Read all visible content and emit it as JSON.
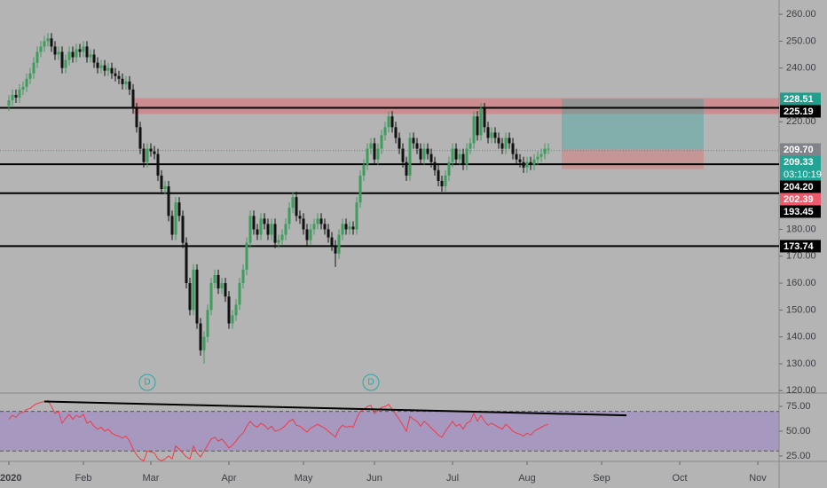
{
  "chart_data": [
    {
      "type": "candlestick",
      "up_color": "#3e9c5c",
      "down_color": "#111111",
      "open": [
        226,
        228,
        230,
        229,
        232,
        233,
        236,
        238,
        242,
        246,
        248,
        250,
        251,
        248,
        245,
        246,
        240,
        243,
        246,
        244,
        247,
        246,
        248,
        244,
        245,
        242,
        240,
        241,
        239,
        240,
        238,
        237,
        236,
        234,
        235,
        232,
        225,
        218,
        210,
        205,
        210,
        209,
        208,
        200,
        195,
        196,
        185,
        178,
        190,
        185,
        175,
        160,
        150,
        165,
        145,
        135,
        140,
        150,
        160,
        163,
        158,
        160,
        155,
        145,
        148,
        152,
        160,
        165,
        175,
        185,
        180,
        178,
        184,
        182,
        178,
        182,
        175,
        176,
        178,
        182,
        188,
        192,
        185,
        184,
        180,
        176,
        180,
        182,
        184,
        182,
        180,
        177,
        174,
        171,
        178,
        182,
        180,
        181,
        180,
        190,
        200,
        204,
        210,
        212,
        206,
        210,
        215,
        218,
        222,
        218,
        214,
        210,
        205,
        200,
        214,
        212,
        210,
        206,
        210,
        208,
        205,
        202,
        198,
        196,
        200,
        205,
        210,
        206,
        208,
        204,
        210,
        212,
        222,
        215,
        225,
        218,
        214,
        216,
        214,
        212,
        210,
        214,
        212,
        208,
        206,
        205,
        203,
        205,
        204,
        206,
        207,
        208,
        210
      ],
      "high": [
        230,
        232,
        232,
        234,
        235,
        238,
        240,
        244,
        248,
        250,
        252,
        253,
        253,
        250,
        248,
        248,
        245,
        248,
        248,
        249,
        249,
        250,
        250,
        247,
        247,
        244,
        243,
        243,
        242,
        242,
        240,
        239,
        238,
        237,
        237,
        234,
        227,
        220,
        212,
        212,
        212,
        211,
        210,
        202,
        198,
        198,
        187,
        192,
        192,
        187,
        177,
        162,
        167,
        167,
        147,
        142,
        152,
        162,
        165,
        165,
        162,
        162,
        157,
        150,
        154,
        162,
        167,
        177,
        187,
        187,
        182,
        186,
        186,
        184,
        184,
        184,
        178,
        180,
        184,
        190,
        194,
        194,
        187,
        186,
        182,
        182,
        184,
        186,
        186,
        184,
        182,
        179,
        176,
        180,
        184,
        184,
        183,
        183,
        192,
        202,
        206,
        212,
        214,
        214,
        212,
        217,
        220,
        224,
        224,
        220,
        216,
        212,
        207,
        216,
        216,
        214,
        212,
        212,
        212,
        210,
        207,
        204,
        200,
        202,
        207,
        212,
        212,
        210,
        210,
        212,
        214,
        224,
        224,
        227,
        227,
        220,
        218,
        218,
        216,
        214,
        216,
        216,
        214,
        210,
        208,
        207,
        207,
        207,
        208,
        209,
        210,
        212,
        212
      ],
      "low": [
        224,
        226,
        227,
        227,
        230,
        231,
        234,
        236,
        240,
        244,
        246,
        248,
        246,
        243,
        243,
        238,
        238,
        241,
        242,
        242,
        244,
        244,
        242,
        242,
        240,
        238,
        238,
        237,
        237,
        236,
        235,
        234,
        232,
        232,
        230,
        223,
        216,
        208,
        203,
        203,
        207,
        206,
        198,
        193,
        193,
        183,
        176,
        176,
        183,
        173,
        158,
        148,
        148,
        143,
        133,
        130,
        138,
        148,
        158,
        156,
        156,
        153,
        143,
        143,
        146,
        150,
        158,
        163,
        173,
        178,
        176,
        176,
        180,
        176,
        176,
        173,
        173,
        174,
        176,
        180,
        186,
        183,
        182,
        178,
        174,
        174,
        178,
        180,
        180,
        178,
        175,
        172,
        166,
        169,
        176,
        178,
        178,
        178,
        178,
        188,
        198,
        202,
        208,
        204,
        204,
        208,
        213,
        216,
        216,
        212,
        208,
        203,
        198,
        198,
        210,
        208,
        204,
        204,
        206,
        203,
        200,
        196,
        194,
        194,
        198,
        203,
        204,
        204,
        202,
        202,
        208,
        210,
        213,
        213,
        216,
        212,
        212,
        212,
        210,
        208,
        208,
        210,
        206,
        204,
        203,
        201,
        201,
        202,
        202,
        204,
        205,
        206,
        208
      ],
      "close": [
        228,
        230,
        229,
        232,
        233,
        236,
        238,
        242,
        246,
        248,
        250,
        251,
        248,
        245,
        246,
        240,
        243,
        246,
        244,
        247,
        246,
        248,
        244,
        245,
        242,
        240,
        241,
        239,
        240,
        238,
        237,
        236,
        234,
        235,
        232,
        225,
        218,
        210,
        205,
        210,
        209,
        208,
        200,
        195,
        196,
        185,
        178,
        190,
        185,
        175,
        160,
        150,
        165,
        145,
        135,
        140,
        150,
        160,
        163,
        158,
        160,
        155,
        145,
        148,
        152,
        160,
        165,
        175,
        185,
        180,
        178,
        184,
        182,
        178,
        182,
        175,
        176,
        178,
        182,
        188,
        192,
        185,
        184,
        180,
        176,
        180,
        182,
        184,
        182,
        180,
        177,
        174,
        171,
        178,
        182,
        180,
        181,
        180,
        190,
        200,
        204,
        210,
        212,
        206,
        210,
        215,
        218,
        222,
        218,
        214,
        210,
        205,
        200,
        214,
        212,
        210,
        206,
        210,
        208,
        205,
        202,
        198,
        196,
        200,
        205,
        210,
        206,
        208,
        204,
        210,
        212,
        222,
        215,
        225,
        218,
        214,
        216,
        214,
        212,
        210,
        214,
        212,
        208,
        206,
        205,
        203,
        205,
        204,
        206,
        207,
        208,
        210,
        210
      ],
      "xlim": [
        -2.5,
        217
      ],
      "ylim": [
        119.1,
        265.3
      ],
      "yticks": [
        {
          "value": 260,
          "label": "260.00"
        },
        {
          "value": 250,
          "label": "250.00"
        },
        {
          "value": 240,
          "label": "240.00"
        },
        {
          "value": 220,
          "label": "220.00"
        },
        {
          "value": 180,
          "label": "180.00"
        },
        {
          "value": 170,
          "label": "170.00"
        },
        {
          "value": 160,
          "label": "160.00"
        },
        {
          "value": 150,
          "label": "150.00"
        },
        {
          "value": 140,
          "label": "140.00"
        },
        {
          "value": 130,
          "label": "130.00"
        },
        {
          "value": 120,
          "label": "120.00"
        }
      ],
      "levels": [
        225.19,
        204.2,
        193.45,
        173.74
      ],
      "current_price": 209.33,
      "zone": {
        "x0": 35,
        "y": [
          222.9,
          228.8
        ],
        "color": "rgba(236,90,100,0.45)"
      },
      "position": {
        "x": [
          155.75,
          195.75
        ],
        "target": 228.51,
        "entry": 209.7,
        "stop": 202.39
      },
      "dividends": {
        "x": [
          39,
          102
        ],
        "label": "D"
      },
      "price_labels": [
        {
          "value": 228.51,
          "color": "#1f9e8c"
        },
        {
          "value": 225.19,
          "color": "#000000"
        },
        {
          "value": 209.7,
          "label": "209.70",
          "color": "#808389"
        },
        {
          "value": 209.33,
          "countdown": "03:10:19",
          "color": "#23a393"
        },
        {
          "value": 204.2,
          "label": "204.20",
          "color": "#000000"
        },
        {
          "value": 202.39,
          "color": "#ec5b6b"
        },
        {
          "value": 193.45,
          "color": "#000000"
        },
        {
          "value": 173.74,
          "color": "#000000"
        }
      ]
    },
    {
      "type": "line",
      "color": "#f03a48",
      "values": [
        62,
        66,
        64,
        68,
        69,
        72,
        73,
        76,
        78,
        79,
        80,
        81,
        75,
        68,
        70,
        58,
        63,
        67,
        62,
        66,
        64,
        67,
        58,
        60,
        55,
        52,
        54,
        50,
        52,
        48,
        46,
        45,
        43,
        45,
        40,
        32,
        26,
        22,
        20,
        30,
        29,
        28,
        22,
        20,
        22,
        25,
        22,
        35,
        32,
        28,
        24,
        22,
        35,
        28,
        24,
        30,
        36,
        42,
        44,
        40,
        42,
        38,
        33,
        36,
        40,
        45,
        48,
        55,
        60,
        56,
        54,
        58,
        56,
        52,
        55,
        50,
        51,
        53,
        56,
        60,
        62,
        56,
        55,
        52,
        49,
        53,
        55,
        57,
        55,
        53,
        50,
        47,
        44,
        52,
        56,
        54,
        55,
        54,
        63,
        70,
        72,
        75,
        76,
        68,
        71,
        74,
        75,
        77,
        72,
        67,
        62,
        56,
        50,
        65,
        62,
        60,
        55,
        60,
        57,
        53,
        50,
        46,
        44,
        50,
        55,
        60,
        55,
        57,
        52,
        58,
        60,
        68,
        60,
        66,
        60,
        56,
        58,
        56,
        54,
        52,
        57,
        54,
        50,
        48,
        47,
        45,
        48,
        46,
        50,
        52,
        54,
        56,
        57
      ],
      "ylim": [
        19.5,
        88.5
      ],
      "yticks": [
        {
          "value": 75,
          "label": "75.00"
        },
        {
          "value": 50,
          "label": "50.00"
        },
        {
          "value": 25,
          "label": "25.00"
        }
      ],
      "bands": [
        30,
        70
      ],
      "trend_line": {
        "x": [
          10,
          174
        ],
        "y": [
          80,
          66
        ]
      },
      "xticks": [
        {
          "value": 0,
          "label": "2020"
        },
        {
          "value": 21,
          "label": "Feb"
        },
        {
          "value": 40,
          "label": "Mar"
        },
        {
          "value": 62,
          "label": "Apr"
        },
        {
          "value": 83,
          "label": "May"
        },
        {
          "value": 103,
          "label": "Jun"
        },
        {
          "value": 125,
          "label": "Jul"
        },
        {
          "value": 146,
          "label": "Aug"
        },
        {
          "value": 167,
          "label": "Sep"
        },
        {
          "value": 189,
          "label": "Oct"
        },
        {
          "value": 211,
          "label": "Nov"
        }
      ]
    }
  ]
}
